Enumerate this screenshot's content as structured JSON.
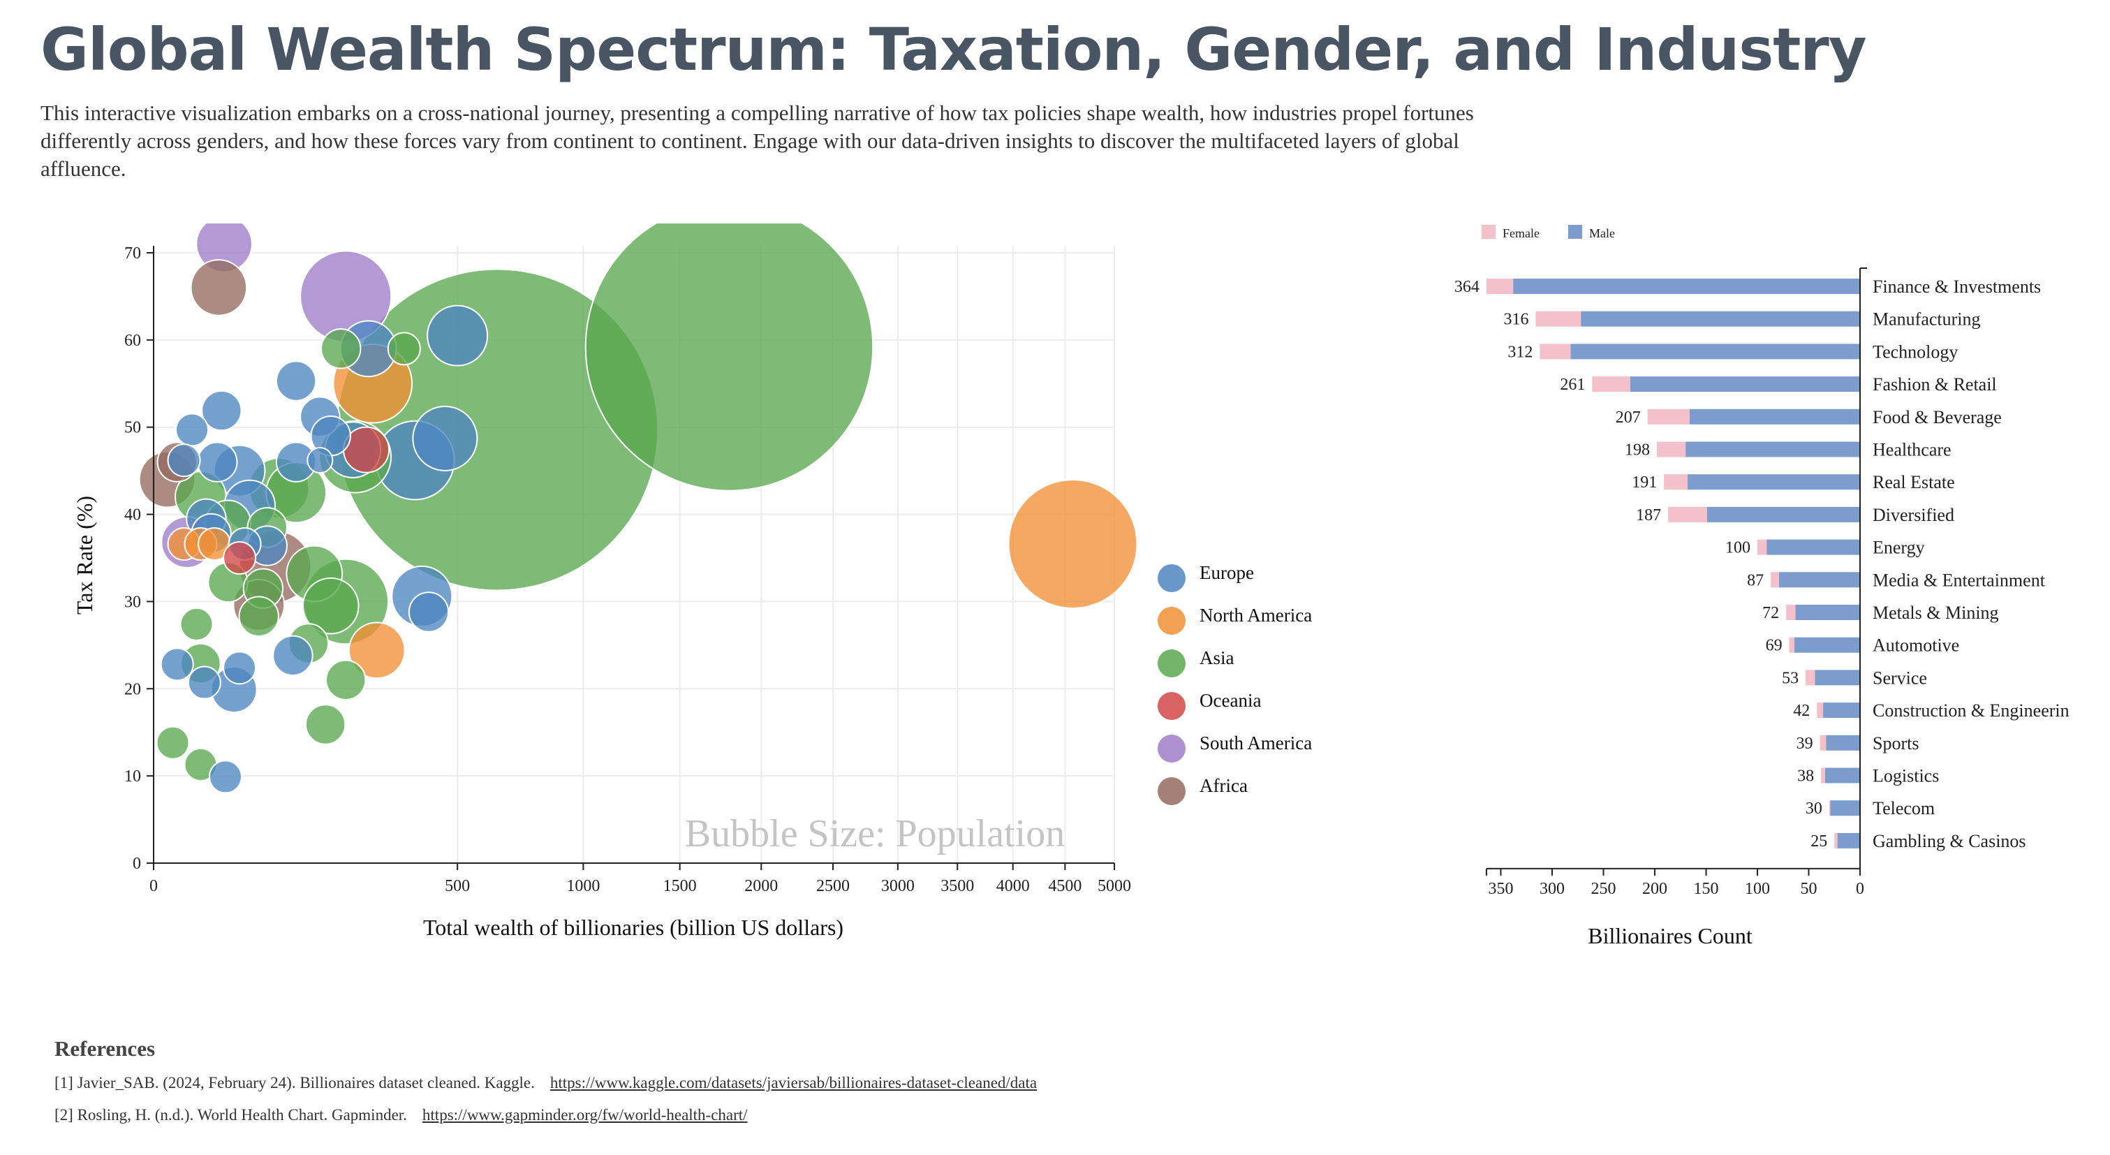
{
  "header": {
    "title": "Global Wealth Spectrum: Taxation, Gender, and Industry",
    "subtitle": "This interactive visualization embarks on a cross-national journey, presenting a compelling narrative of how tax policies shape wealth, how industries propel fortunes differently across genders, and how these forces vary from continent to continent. Engage with our data-driven insights to discover the multifaceted layers of global affluence."
  },
  "chart_data": [
    {
      "type": "scatter",
      "subtype": "bubble",
      "xlabel": "Total wealth of billionaries (billion US dollars)",
      "ylabel": "Tax Rate (%)",
      "x_scale": "sqrt",
      "xlim": [
        0,
        5000
      ],
      "ylim": [
        0,
        70
      ],
      "x_ticks": [
        "0",
        "500",
        "1000",
        "1500",
        "2000",
        "2500",
        "3000",
        "3500",
        "4000",
        "4500",
        "5000"
      ],
      "y_ticks": [
        "0",
        "10",
        "20",
        "30",
        "40",
        "50",
        "60",
        "70"
      ],
      "size_note": "Bubble Size: Population",
      "grid": true,
      "legend_position": "right",
      "colors": {
        "Europe": "#4e86c0",
        "North America": "#f18f35",
        "Asia": "#5aa84f",
        "Oceania": "#d04848",
        "South America": "#9e7dc8",
        "Africa": "#946a5f"
      },
      "legend": [
        "Europe",
        "North America",
        "Asia",
        "Oceania",
        "South America",
        "Africa"
      ],
      "points": [
        {
          "continent": "Asia",
          "wealth": 1795,
          "tax": 59.2,
          "pop": 80
        },
        {
          "continent": "Asia",
          "wealth": 640,
          "tax": 49.7,
          "pop": 100
        },
        {
          "continent": "North America",
          "wealth": 4577,
          "tax": 36.6,
          "pop": 16
        },
        {
          "continent": "South America",
          "wealth": 27,
          "tax": 71.0,
          "pop": 3
        },
        {
          "continent": "Africa",
          "wealth": 23,
          "tax": 66.0,
          "pop": 3
        },
        {
          "continent": "South America",
          "wealth": 200,
          "tax": 65.0,
          "pop": 8
        },
        {
          "continent": "Europe",
          "wealth": 250,
          "tax": 59.0,
          "pop": 3
        },
        {
          "continent": "Asia",
          "wealth": 190,
          "tax": 59.0,
          "pop": 1.5
        },
        {
          "continent": "Asia",
          "wealth": 340,
          "tax": 59.0,
          "pop": 1
        },
        {
          "continent": "Europe",
          "wealth": 500,
          "tax": 60.5,
          "pop": 3.5
        },
        {
          "continent": "North America",
          "wealth": 260,
          "tax": 55.0,
          "pop": 6
        },
        {
          "continent": "Europe",
          "wealth": 110,
          "tax": 55.3,
          "pop": 1.5
        },
        {
          "continent": "Europe",
          "wealth": 25,
          "tax": 51.9,
          "pop": 1.5
        },
        {
          "continent": "Europe",
          "wealth": 150,
          "tax": 51.2,
          "pop": 1.5
        },
        {
          "continent": "Europe",
          "wealth": 8,
          "tax": 49.7,
          "pop": 1
        },
        {
          "continent": "Europe",
          "wealth": 170,
          "tax": 49.0,
          "pop": 1.5
        },
        {
          "continent": "Europe",
          "wealth": 460,
          "tax": 48.7,
          "pop": 4
        },
        {
          "continent": "Asia",
          "wealth": 220,
          "tax": 46.6,
          "pop": 5
        },
        {
          "continent": "Europe",
          "wealth": 215,
          "tax": 47.4,
          "pop": 3
        },
        {
          "continent": "Oceania",
          "wealth": 245,
          "tax": 47.4,
          "pop": 2
        },
        {
          "continent": "Europe",
          "wealth": 370,
          "tax": 46.2,
          "pop": 6
        },
        {
          "continent": "Europe",
          "wealth": 110,
          "tax": 46.0,
          "pop": 1.5
        },
        {
          "continent": "Europe",
          "wealth": 150,
          "tax": 46.2,
          "pop": 0.5
        },
        {
          "continent": "Africa",
          "wealth": 3,
          "tax": 46.0,
          "pop": 1.5
        },
        {
          "continent": "Europe",
          "wealth": 5,
          "tax": 46.2,
          "pop": 1
        },
        {
          "continent": "Europe",
          "wealth": 22,
          "tax": 46.0,
          "pop": 1.5
        },
        {
          "continent": "Europe",
          "wealth": 40,
          "tax": 45.0,
          "pop": 2.5
        },
        {
          "continent": "Africa",
          "wealth": 1,
          "tax": 44.0,
          "pop": 3
        },
        {
          "continent": "Asia",
          "wealth": 85,
          "tax": 43.0,
          "pop": 3.5
        },
        {
          "continent": "Asia",
          "wealth": 110,
          "tax": 42.5,
          "pop": 3.5
        },
        {
          "continent": "Asia",
          "wealth": 12,
          "tax": 42.0,
          "pop": 2.5
        },
        {
          "continent": "Europe",
          "wealth": 50,
          "tax": 41.0,
          "pop": 2.5
        },
        {
          "continent": "Europe",
          "wealth": 15,
          "tax": 39.5,
          "pop": 1.5
        },
        {
          "continent": "Asia",
          "wealth": 30,
          "tax": 39.0,
          "pop": 2
        },
        {
          "continent": "Asia",
          "wealth": 70,
          "tax": 38.5,
          "pop": 1.5
        },
        {
          "continent": "Europe",
          "wealth": 18,
          "tax": 37.8,
          "pop": 1.5
        },
        {
          "continent": "South America",
          "wealth": 6,
          "tax": 36.8,
          "pop": 2.5
        },
        {
          "continent": "North America",
          "wealth": 5,
          "tax": 36.6,
          "pop": 1
        },
        {
          "continent": "North America",
          "wealth": 12,
          "tax": 36.6,
          "pop": 1
        },
        {
          "continent": "North America",
          "wealth": 20,
          "tax": 36.6,
          "pop": 1
        },
        {
          "continent": "Europe",
          "wealth": 45,
          "tax": 36.6,
          "pop": 1
        },
        {
          "continent": "Europe",
          "wealth": 70,
          "tax": 36.4,
          "pop": 1.5
        },
        {
          "continent": "Africa",
          "wealth": 80,
          "tax": 34.0,
          "pop": 5
        },
        {
          "continent": "Oceania",
          "wealth": 40,
          "tax": 35.0,
          "pop": 1
        },
        {
          "continent": "Asia",
          "wealth": 140,
          "tax": 33.2,
          "pop": 3
        },
        {
          "continent": "Asia",
          "wealth": 30,
          "tax": 32.2,
          "pop": 1.5
        },
        {
          "continent": "Asia",
          "wealth": 65,
          "tax": 31.5,
          "pop": 1.5
        },
        {
          "continent": "Asia",
          "wealth": 200,
          "tax": 30.0,
          "pop": 7
        },
        {
          "continent": "Asia",
          "wealth": 170,
          "tax": 29.5,
          "pop": 3
        },
        {
          "continent": "Europe",
          "wealth": 390,
          "tax": 30.6,
          "pop": 3.5
        },
        {
          "continent": "Europe",
          "wealth": 410,
          "tax": 28.8,
          "pop": 1.5
        },
        {
          "continent": "Africa",
          "wealth": 60,
          "tax": 29.6,
          "pop": 2.5
        },
        {
          "continent": "Asia",
          "wealth": 60,
          "tax": 28.3,
          "pop": 1.5
        },
        {
          "continent": "Asia",
          "wealth": 10,
          "tax": 27.4,
          "pop": 1
        },
        {
          "continent": "Asia",
          "wealth": 130,
          "tax": 25.2,
          "pop": 1.5
        },
        {
          "continent": "North America",
          "wealth": 270,
          "tax": 24.4,
          "pop": 3
        },
        {
          "continent": "Europe",
          "wealth": 105,
          "tax": 23.8,
          "pop": 1.5
        },
        {
          "continent": "Asia",
          "wealth": 12,
          "tax": 22.9,
          "pop": 1.5
        },
        {
          "continent": "Europe",
          "wealth": 3,
          "tax": 22.8,
          "pop": 1
        },
        {
          "continent": "Europe",
          "wealth": 40,
          "tax": 22.4,
          "pop": 1
        },
        {
          "continent": "Asia",
          "wealth": 200,
          "tax": 21.0,
          "pop": 1.5
        },
        {
          "continent": "Europe",
          "wealth": 14,
          "tax": 20.7,
          "pop": 1
        },
        {
          "continent": "Europe",
          "wealth": 35,
          "tax": 19.9,
          "pop": 2
        },
        {
          "continent": "Asia",
          "wealth": 160,
          "tax": 15.9,
          "pop": 1.5
        },
        {
          "continent": "Asia",
          "wealth": 2,
          "tax": 13.8,
          "pop": 1
        },
        {
          "continent": "Asia",
          "wealth": 12,
          "tax": 11.3,
          "pop": 1
        },
        {
          "continent": "Europe",
          "wealth": 28,
          "tax": 9.9,
          "pop": 1
        }
      ]
    },
    {
      "type": "bar",
      "subtype": "horizontal-stacked",
      "xlabel": "Billionaires Count",
      "xlim": [
        0,
        364
      ],
      "x_reversed": true,
      "x_ticks": [
        "350",
        "300",
        "250",
        "200",
        "150",
        "100",
        "50",
        "0"
      ],
      "legend_position": "top-left",
      "colors": {
        "Female": "#f4c0ca",
        "Male": "#7b9ccc"
      },
      "series_names": {
        "female": "Female",
        "male": "Male"
      },
      "categories": [
        "Finance & Investments",
        "Manufacturing",
        "Technology",
        "Fashion & Retail",
        "Food & Beverage",
        "Healthcare",
        "Real Estate",
        "Diversified",
        "Energy",
        "Media & Entertainment",
        "Metals & Mining",
        "Automotive",
        "Service",
        "Construction & Engineerin",
        "Sports",
        "Logistics",
        "Telecom",
        "Gambling & Casinos"
      ],
      "totals": [
        364,
        316,
        312,
        261,
        207,
        198,
        191,
        187,
        100,
        87,
        72,
        69,
        53,
        42,
        39,
        38,
        30,
        25
      ],
      "series": [
        {
          "name": "Female",
          "values": [
            26,
            44,
            30,
            37,
            41,
            28,
            23,
            38,
            9,
            8,
            9,
            5,
            9,
            6,
            6,
            4,
            1,
            3
          ]
        },
        {
          "name": "Male",
          "values": [
            338,
            272,
            282,
            224,
            166,
            170,
            168,
            149,
            91,
            79,
            63,
            64,
            44,
            36,
            33,
            34,
            29,
            22
          ]
        }
      ]
    }
  ],
  "references": {
    "title": "References",
    "items": [
      {
        "text": "[1] Javier_SAB. (2024, February 24). Billionaires dataset cleaned. Kaggle.",
        "link": "https://www.kaggle.com/datasets/javiersab/billionaires-dataset-cleaned/data"
      },
      {
        "text": "[2] Rosling, H. (n.d.). World Health Chart. Gapminder.",
        "link": "https://www.gapminder.org/fw/world-health-chart/"
      }
    ]
  }
}
